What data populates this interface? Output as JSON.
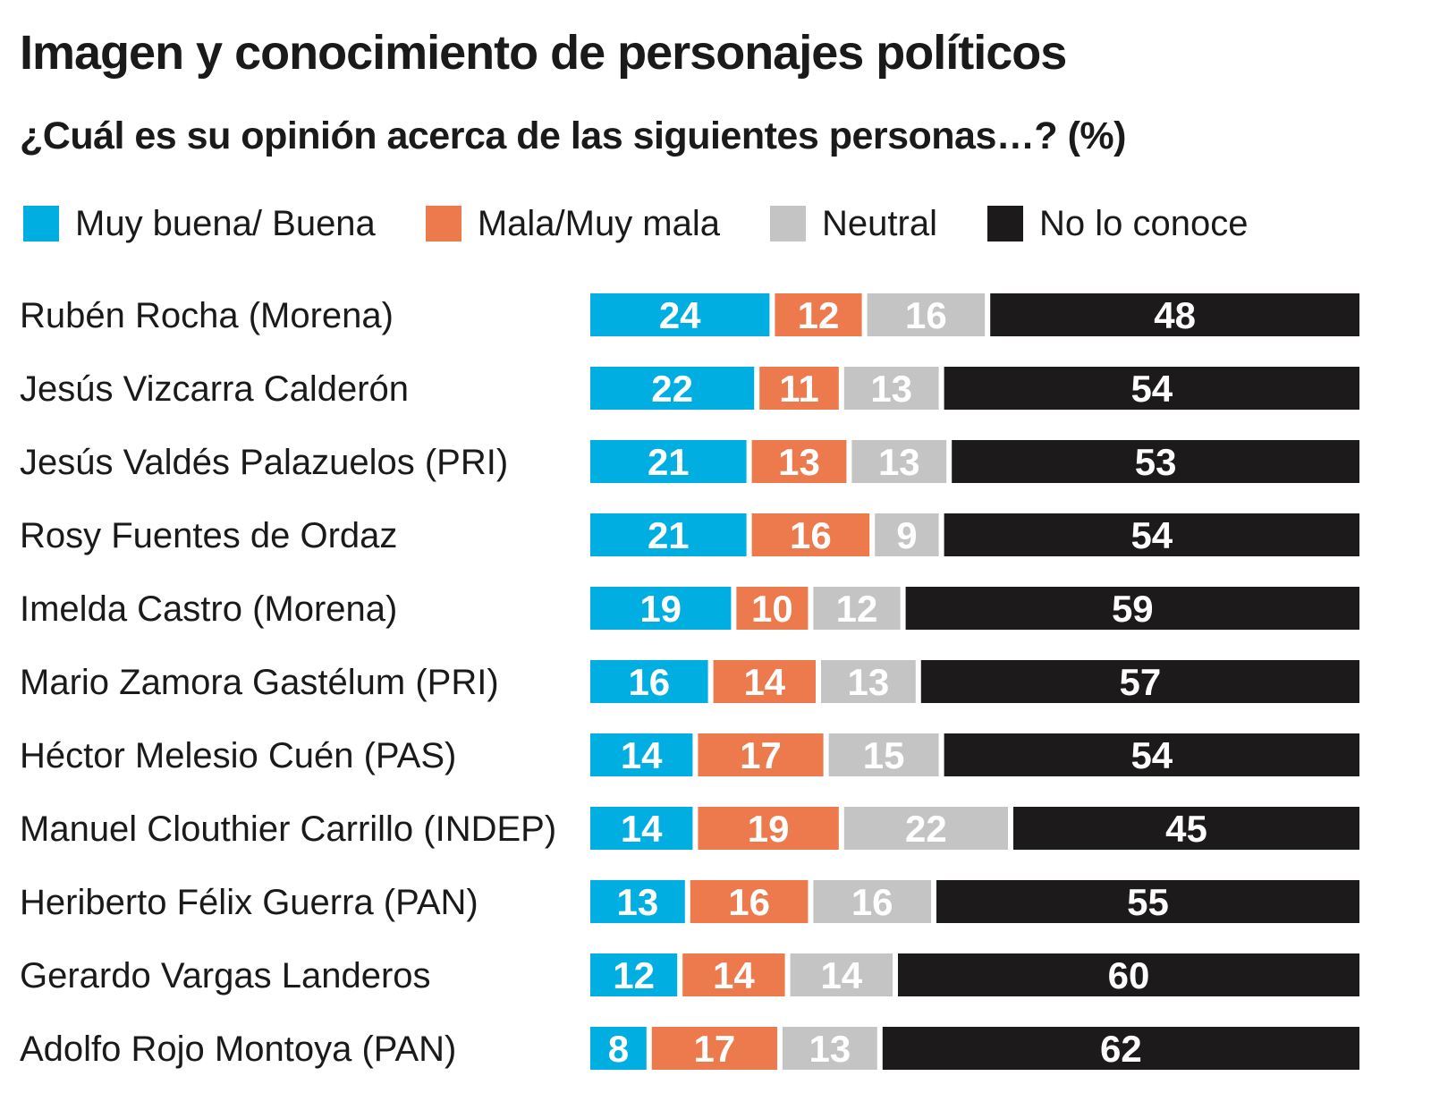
{
  "title": "Imagen y conocimiento de personajes políticos",
  "subtitle": "¿Cuál es su opinión acerca de las siguientes personas…? (%)",
  "colors": {
    "buena": "#00aee2",
    "mala": "#ec7a4d",
    "neutral": "#c4c4c5",
    "no_conoce": "#1c1a1b"
  },
  "chart_data": {
    "type": "bar",
    "orientation": "horizontal",
    "stacked": true,
    "xlim": [
      0,
      100
    ],
    "legend_position": "top",
    "categories": [
      "Rubén Rocha (Morena)",
      "Jesús Vizcarra Calderón",
      "Jesús Valdés Palazuelos (PRI)",
      "Rosy Fuentes de Ordaz",
      "Imelda Castro (Morena)",
      "Mario Zamora Gastélum (PRI)",
      "Héctor Melesio Cuén (PAS)",
      "Manuel Clouthier Carrillo (INDEP)",
      "Heriberto Félix Guerra (PAN)",
      "Gerardo Vargas Landeros",
      "Adolfo Rojo Montoya (PAN)"
    ],
    "series": [
      {
        "name": "Muy buena/ Buena",
        "color": "#00aee2",
        "label_color": "#ffffff",
        "values": [
          24,
          22,
          21,
          21,
          19,
          16,
          14,
          14,
          13,
          12,
          8
        ]
      },
      {
        "name": "Mala/Muy mala",
        "color": "#ec7a4d",
        "label_color": "#ffffff",
        "values": [
          12,
          11,
          13,
          16,
          10,
          14,
          17,
          19,
          16,
          14,
          17
        ]
      },
      {
        "name": "Neutral",
        "color": "#c4c4c5",
        "label_color": "#ffffff",
        "values": [
          16,
          13,
          13,
          9,
          12,
          13,
          15,
          22,
          16,
          14,
          13
        ]
      },
      {
        "name": "No lo conoce",
        "color": "#1c1a1b",
        "label_color": "#ffffff",
        "values": [
          48,
          54,
          53,
          54,
          59,
          57,
          54,
          45,
          55,
          60,
          62
        ]
      }
    ]
  }
}
